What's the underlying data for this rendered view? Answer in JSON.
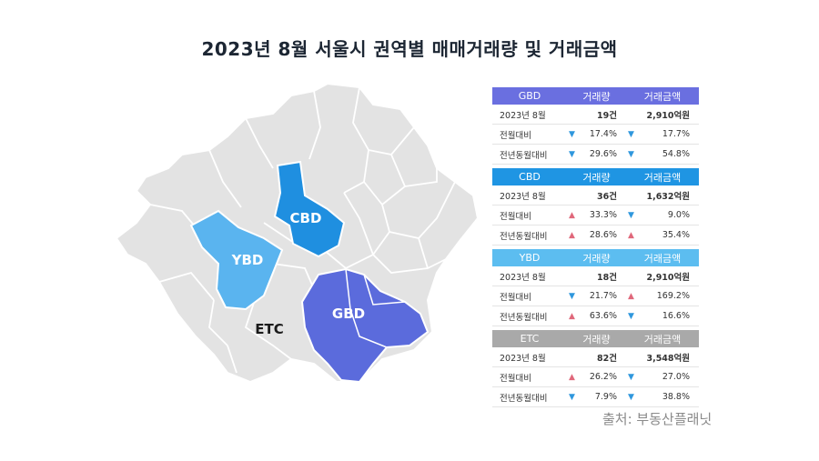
{
  "title": "2023년 8월 서울시 권역별 매매거래량 및 거래금액",
  "map_labels": {
    "cbd": "CBD",
    "ybd": "YBD",
    "gbd": "GBD",
    "etc": "ETC"
  },
  "colors": {
    "gbd": "#5b6bdc",
    "cbd": "#1f8fe0",
    "ybd": "#5ab4ef",
    "etc": "#a9a9a9",
    "up": "#e0687b",
    "down": "#2f97dd",
    "region": "#e3e3e3"
  },
  "columns": {
    "volume": "거래량",
    "amount": "거래금액"
  },
  "blocks": [
    {
      "name": "GBD",
      "color": "#6a6fe0",
      "rows": [
        {
          "label": "2023년 8월",
          "volume": "19건",
          "amount": "2,910억원"
        },
        {
          "label": "전월대비",
          "volume_dir": "down",
          "volume": "17.4%",
          "amount_dir": "down",
          "amount": "17.7%"
        },
        {
          "label": "전년동월대비",
          "volume_dir": "down",
          "volume": "29.6%",
          "amount_dir": "down",
          "amount": "54.8%"
        }
      ]
    },
    {
      "name": "CBD",
      "color": "#1f95e3",
      "rows": [
        {
          "label": "2023년 8월",
          "volume": "36건",
          "amount": "1,632억원"
        },
        {
          "label": "전월대비",
          "volume_dir": "up",
          "volume": "33.3%",
          "amount_dir": "down",
          "amount": "9.0%"
        },
        {
          "label": "전년동월대비",
          "volume_dir": "up",
          "volume": "28.6%",
          "amount_dir": "up",
          "amount": "35.4%"
        }
      ]
    },
    {
      "name": "YBD",
      "color": "#5cbdf0",
      "rows": [
        {
          "label": "2023년 8월",
          "volume": "18건",
          "amount": "2,910억원"
        },
        {
          "label": "전월대비",
          "volume_dir": "down",
          "volume": "21.7%",
          "amount_dir": "up",
          "amount": "169.2%"
        },
        {
          "label": "전년동월대비",
          "volume_dir": "up",
          "volume": "63.6%",
          "amount_dir": "down",
          "amount": "16.6%"
        }
      ]
    },
    {
      "name": "ETC",
      "color": "#a9a9a9",
      "rows": [
        {
          "label": "2023년 8월",
          "volume": "82건",
          "amount": "3,548억원"
        },
        {
          "label": "전월대비",
          "volume_dir": "up",
          "volume": "26.2%",
          "amount_dir": "down",
          "amount": "27.0%"
        },
        {
          "label": "전년동월대비",
          "volume_dir": "down",
          "volume": "7.9%",
          "amount_dir": "down",
          "amount": "38.8%"
        }
      ]
    }
  ],
  "source": "출처: 부동산플래닛"
}
